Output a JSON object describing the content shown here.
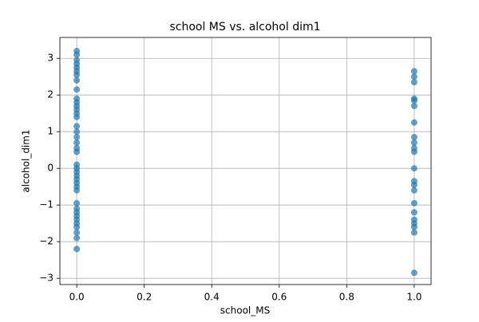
{
  "chart_data": {
    "type": "scatter",
    "title": "school MS vs. alcohol dim1",
    "x_label": "school_MS",
    "y_label": "alcohol_dim1",
    "x": [
      0,
      0,
      0,
      0,
      0,
      0,
      0,
      0,
      0,
      0,
      0,
      0,
      0,
      0,
      0,
      0,
      0,
      0,
      0,
      0,
      0,
      0,
      0,
      0,
      0,
      0,
      0,
      0,
      0,
      0,
      0,
      0,
      0,
      0,
      0,
      0,
      0,
      0,
      0,
      1,
      1,
      1,
      1,
      1,
      1,
      1,
      1,
      1,
      1,
      1,
      1,
      1,
      1,
      1,
      1,
      1,
      1,
      1,
      1,
      1,
      1
    ],
    "values": [
      3.2,
      3.1,
      2.95,
      2.85,
      2.75,
      2.65,
      2.55,
      2.4,
      2.15,
      1.9,
      1.8,
      1.7,
      1.6,
      1.5,
      1.4,
      1.15,
      1.0,
      0.85,
      0.7,
      0.55,
      0.45,
      0.1,
      0.0,
      -0.1,
      -0.2,
      -0.3,
      -0.4,
      -0.5,
      -0.6,
      -0.95,
      -1.1,
      -1.2,
      -1.3,
      -1.4,
      -1.5,
      -1.6,
      -1.75,
      -1.9,
      -2.2,
      2.65,
      2.5,
      2.35,
      1.9,
      1.85,
      1.7,
      1.25,
      0.85,
      0.7,
      0.55,
      0.45,
      0.0,
      -0.35,
      -0.45,
      -0.6,
      -0.95,
      -1.2,
      -1.4,
      -1.5,
      -1.6,
      -1.75,
      -2.85
    ],
    "color": "#1f77b4",
    "xlim": [
      -0.05,
      1.05
    ],
    "xticks": [
      {
        "value": 0,
        "label": "0.0"
      },
      {
        "value": 0.2,
        "label": "0.2"
      },
      {
        "value": 0.4,
        "label": "0.4"
      },
      {
        "value": 0.6,
        "label": "0.6"
      },
      {
        "value": 0.8,
        "label": "0.8"
      },
      {
        "value": 1,
        "label": "1.0"
      }
    ],
    "ylim": [
      -3.17,
      3.57
    ],
    "yticks": [
      {
        "value": -3,
        "label": "−3"
      },
      {
        "value": -2,
        "label": "−2"
      },
      {
        "value": -1,
        "label": "−1"
      },
      0,
      1,
      2,
      3
    ],
    "grid": true
  }
}
